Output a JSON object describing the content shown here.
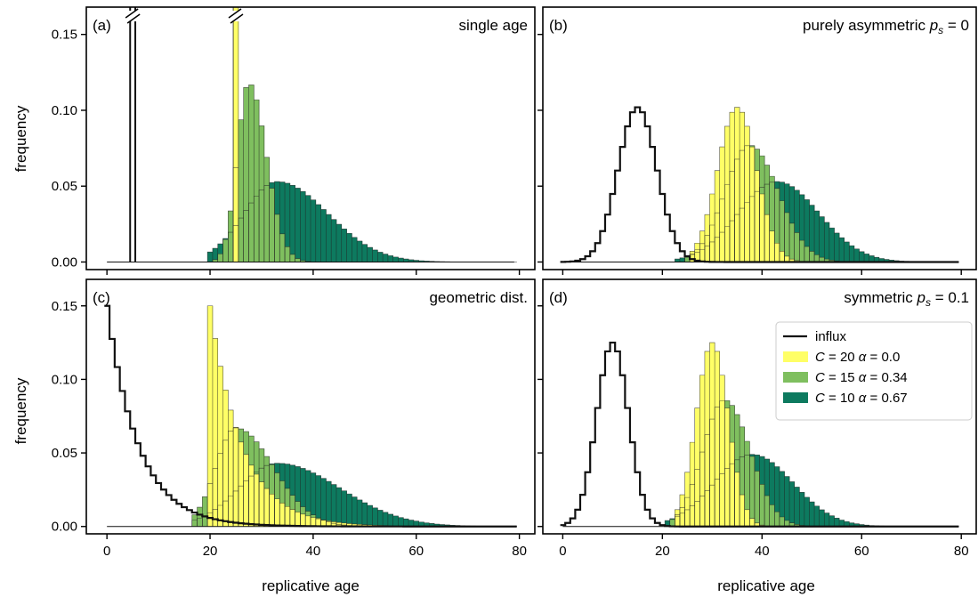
{
  "colors": {
    "yellow": "#ffff66",
    "light_green": "#7fbf5f",
    "dark_green": "#0d7a5f",
    "influx": "#111111"
  },
  "legend": {
    "influx": "influx",
    "C_sym": "C",
    "alpha_sym": "α",
    "eq": "=",
    "entries": [
      {
        "C": "20",
        "alpha": "0.0",
        "color_key": "yellow"
      },
      {
        "C": "15",
        "alpha": "0.34",
        "color_key": "light_green"
      },
      {
        "C": "10",
        "alpha": "0.67",
        "color_key": "dark_green"
      }
    ]
  },
  "chart_data": [
    {
      "type": "histogram",
      "panel_label": "(a)",
      "title": "single age",
      "xlabel": "",
      "ylabel": "frequency",
      "xlim": [
        -4,
        83
      ],
      "ylim": [
        -0.005,
        0.168
      ],
      "xticks": [
        0,
        20,
        40,
        60,
        80
      ],
      "xtick_labels_shown": false,
      "yticks": [
        "0.00",
        "0.05",
        "0.10",
        "0.15"
      ],
      "influx": {
        "type": "spike",
        "age": 5,
        "peak": 1.0
      },
      "series": [
        {
          "C": "20",
          "alpha": "0.0",
          "mean": 25,
          "sd": 0.35,
          "skew": 0,
          "peak": 1.0,
          "start": 25,
          "end": 25
        },
        {
          "C": "15",
          "alpha": "0.34",
          "mean": 27.5,
          "sd": 2.6,
          "skew": 0.3,
          "peak": 0.118,
          "start": 21,
          "end": 42
        },
        {
          "C": "10",
          "alpha": "0.67",
          "mean": 33,
          "sd": 7.5,
          "skew": 0.3,
          "peak": 0.053,
          "start": 20,
          "end": 79
        }
      ],
      "broken_peaks": [
        5,
        25
      ]
    },
    {
      "type": "histogram",
      "panel_label": "(b)",
      "title_prefix": "purely asymmetric",
      "title_sym": "p",
      "title_sub": "s",
      "title_value": "= 0",
      "xlabel": "",
      "ylabel": "",
      "xlim": [
        -4,
        83
      ],
      "ylim": [
        -0.005,
        0.168
      ],
      "xticks": [
        0,
        20,
        40,
        60,
        80
      ],
      "xtick_labels_shown": false,
      "yticks": [],
      "influx": {
        "type": "dist",
        "mean": 15,
        "sd": 3.9,
        "peak": 0.102,
        "start": 0,
        "end": 35
      },
      "series": [
        {
          "C": "20",
          "alpha": "0.0",
          "mean": 35,
          "sd": 3.9,
          "skew": 0,
          "peak": 0.102,
          "start": 26,
          "end": 52
        },
        {
          "C": "15",
          "alpha": "0.34",
          "mean": 37.5,
          "sd": 5.2,
          "skew": 0.1,
          "peak": 0.077,
          "start": 25,
          "end": 62
        },
        {
          "C": "10",
          "alpha": "0.67",
          "mean": 43,
          "sd": 8.0,
          "skew": 0.05,
          "peak": 0.053,
          "start": 23,
          "end": 79
        }
      ]
    },
    {
      "type": "histogram",
      "panel_label": "(c)",
      "title": "geometric dist.",
      "xlabel": "replicative age",
      "ylabel": "frequency",
      "xlim": [
        -4,
        83
      ],
      "ylim": [
        -0.005,
        0.168
      ],
      "xticks": [
        0,
        20,
        40,
        60,
        80
      ],
      "xtick_labels_shown": true,
      "yticks": [
        "0.00",
        "0.05",
        "0.10",
        "0.15"
      ],
      "influx": {
        "type": "geometric",
        "p": 0.15,
        "start": 0,
        "end": 79
      },
      "series": [
        {
          "C": "20",
          "alpha": "0.0",
          "type": "decay",
          "start_age": 20,
          "peak": 0.15,
          "rate": 0.16,
          "end": 55
        },
        {
          "C": "15",
          "alpha": "0.34",
          "mean": 25,
          "sd": 5.0,
          "skew": 0.45,
          "peak": 0.067,
          "start": 17,
          "end": 70
        },
        {
          "C": "10",
          "alpha": "0.67",
          "mean": 33,
          "sd": 9.0,
          "skew": 0.35,
          "peak": 0.043,
          "start": 17,
          "end": 79
        }
      ]
    },
    {
      "type": "histogram",
      "panel_label": "(d)",
      "title_prefix": "symmetric",
      "title_sym": "p",
      "title_sub": "s",
      "title_value": "= 0.1",
      "xlabel": "replicative age",
      "ylabel": "",
      "xlim": [
        -4,
        83
      ],
      "ylim": [
        -0.005,
        0.168
      ],
      "xticks": [
        0,
        20,
        40,
        60,
        80
      ],
      "xtick_labels_shown": true,
      "yticks": [],
      "influx": {
        "type": "dist",
        "mean": 10,
        "sd": 3.2,
        "peak": 0.125,
        "start": 0,
        "end": 30
      },
      "series": [
        {
          "C": "20",
          "alpha": "0.0",
          "mean": 30,
          "sd": 3.2,
          "skew": 0,
          "peak": 0.125,
          "start": 23,
          "end": 45
        },
        {
          "C": "15",
          "alpha": "0.34",
          "mean": 32.5,
          "sd": 4.6,
          "skew": 0.1,
          "peak": 0.086,
          "start": 22,
          "end": 55
        },
        {
          "C": "10",
          "alpha": "0.67",
          "mean": 38,
          "sd": 7.8,
          "skew": 0.05,
          "peak": 0.049,
          "start": 21,
          "end": 79
        }
      ]
    }
  ]
}
